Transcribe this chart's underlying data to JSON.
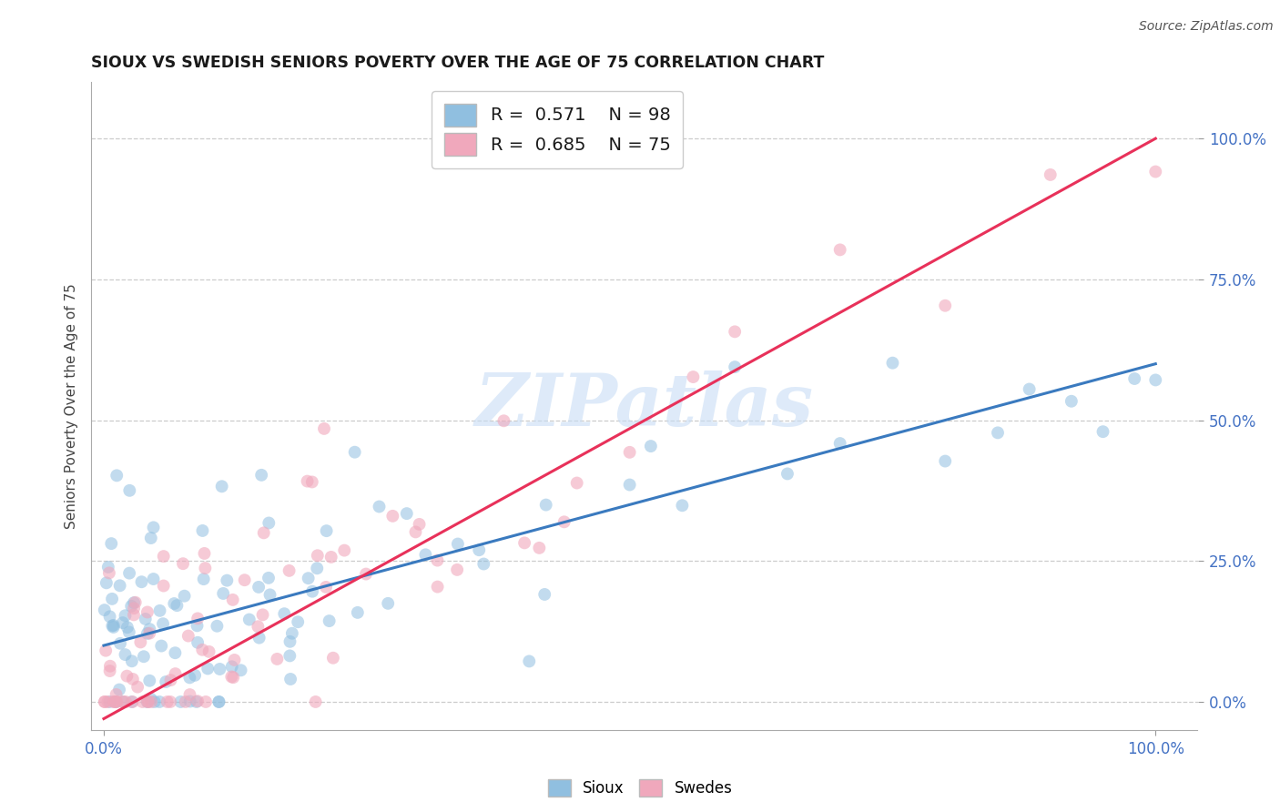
{
  "title": "SIOUX VS SWEDISH SENIORS POVERTY OVER THE AGE OF 75 CORRELATION CHART",
  "source": "Source: ZipAtlas.com",
  "ylabel": "Seniors Poverty Over the Age of 75",
  "legend_label1": "Sioux",
  "legend_label2": "Swedes",
  "r1": 0.571,
  "n1": 98,
  "r2": 0.685,
  "n2": 75,
  "blue_color": "#90bfe0",
  "pink_color": "#f0a8bc",
  "blue_line_color": "#3a7abf",
  "pink_line_color": "#e8315a",
  "watermark_text": "ZIPatlas",
  "watermark_color": "#c8ddf5",
  "background_color": "#ffffff",
  "grid_color": "#cccccc",
  "title_color": "#1a1a1a",
  "axis_tick_color": "#4472c4",
  "ylabel_color": "#444444",
  "blue_line_intercept": 0.1,
  "blue_line_slope": 0.5,
  "pink_line_intercept": -0.03,
  "pink_line_slope": 1.03
}
